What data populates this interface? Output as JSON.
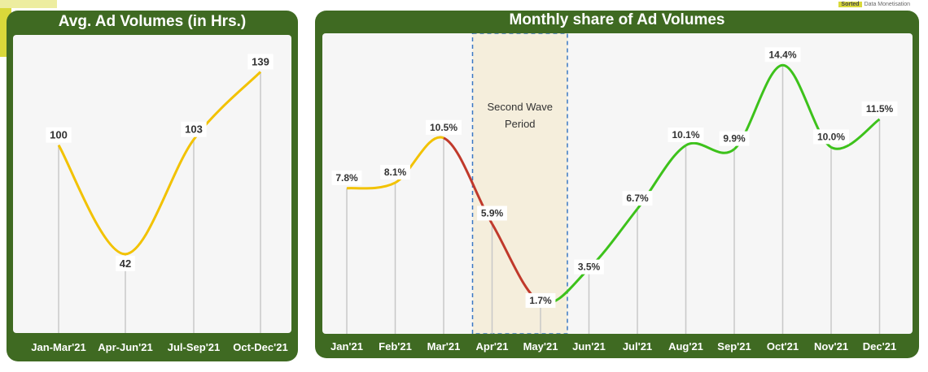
{
  "brand": {
    "label": "Data Monetisation",
    "badge": "Sorted"
  },
  "left_panel": {
    "title": "Avg. Ad Volumes (in Hrs.)"
  },
  "right_panel": {
    "title": "Monthly share of Ad Volumes"
  },
  "chart_data": [
    {
      "type": "line",
      "title": "Avg. Ad Volumes (in Hrs.)",
      "categories": [
        "Jan-Mar'21",
        "Apr-Jun'21",
        "Jul-Sep'21",
        "Oct-Dec'21"
      ],
      "values": [
        100,
        42,
        103,
        139
      ],
      "labels": [
        "100",
        "42",
        "103",
        "139"
      ],
      "ylim": [
        0,
        150
      ],
      "line_color": "#f2c200"
    },
    {
      "type": "line",
      "title": "Monthly share of Ad Volumes",
      "categories": [
        "Jan'21",
        "Feb'21",
        "Mar'21",
        "Apr'21",
        "May'21",
        "Jun'21",
        "Jul'21",
        "Aug'21",
        "Sep'21",
        "Oct'21",
        "Nov'21",
        "Dec'21"
      ],
      "values": [
        7.8,
        8.1,
        10.5,
        5.9,
        1.7,
        3.5,
        6.7,
        10.1,
        9.9,
        14.4,
        10.0,
        11.5
      ],
      "labels": [
        "7.8%",
        "8.1%",
        "10.5%",
        "5.9%",
        "1.7%",
        "3.5%",
        "6.7%",
        "10.1%",
        "9.9%",
        "14.4%",
        "10.0%",
        "11.5%"
      ],
      "ylim": [
        0,
        15.5
      ],
      "segment_colors": [
        "#f2c200",
        "#f2c200",
        "#c0392b",
        "#c0392b",
        "#3dc21b",
        "#3dc21b",
        "#3dc21b",
        "#3dc21b",
        "#3dc21b",
        "#3dc21b",
        "#3dc21b"
      ],
      "annotation": {
        "text_lines": [
          "Second Wave",
          "Period"
        ],
        "from_index": 3,
        "to_index": 4
      }
    }
  ]
}
